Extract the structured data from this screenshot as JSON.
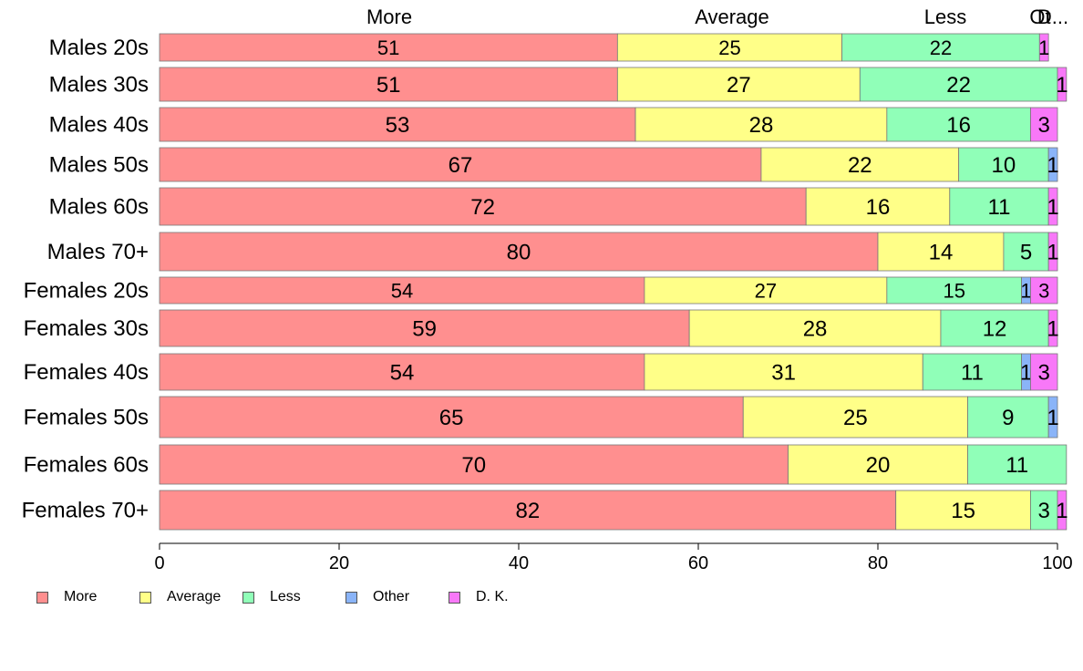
{
  "chart_data": {
    "type": "bar",
    "orientation": "horizontal",
    "stacked": true,
    "categories": [
      "Males 20s",
      "Males 30s",
      "Males 40s",
      "Males 50s",
      "Males 60s",
      "Males 70+",
      "Females 20s",
      "Females 30s",
      "Females 40s",
      "Females 50s",
      "Females 60s",
      "Females 70+"
    ],
    "series": [
      {
        "name": "More",
        "color": "#ff8f8f",
        "values": [
          51,
          51,
          53,
          67,
          72,
          80,
          54,
          59,
          54,
          65,
          70,
          82
        ]
      },
      {
        "name": "Average",
        "color": "#ffff88",
        "values": [
          25,
          27,
          28,
          22,
          16,
          14,
          27,
          28,
          31,
          25,
          20,
          15
        ]
      },
      {
        "name": "Less",
        "color": "#90ffb8",
        "values": [
          22,
          22,
          16,
          10,
          11,
          5,
          15,
          12,
          11,
          9,
          11,
          3
        ]
      },
      {
        "name": "Other",
        "color": "#8ab4f8",
        "values": [
          0,
          0,
          0,
          1,
          0,
          0,
          1,
          0,
          1,
          1,
          0,
          0
        ]
      },
      {
        "name": "D. K.",
        "color": "#f878f8",
        "values": [
          1,
          1,
          3,
          0,
          1,
          1,
          3,
          1,
          3,
          0,
          0,
          1
        ]
      }
    ],
    "top_labels": [
      "More",
      "Average",
      "Less",
      "Ot",
      "D..."
    ],
    "xlim": [
      0,
      100
    ],
    "xticks": [
      0,
      20,
      40,
      60,
      80,
      100
    ],
    "grid": false,
    "legend_position": "bottom-left",
    "title": "",
    "xlabel": "",
    "ylabel": ""
  }
}
